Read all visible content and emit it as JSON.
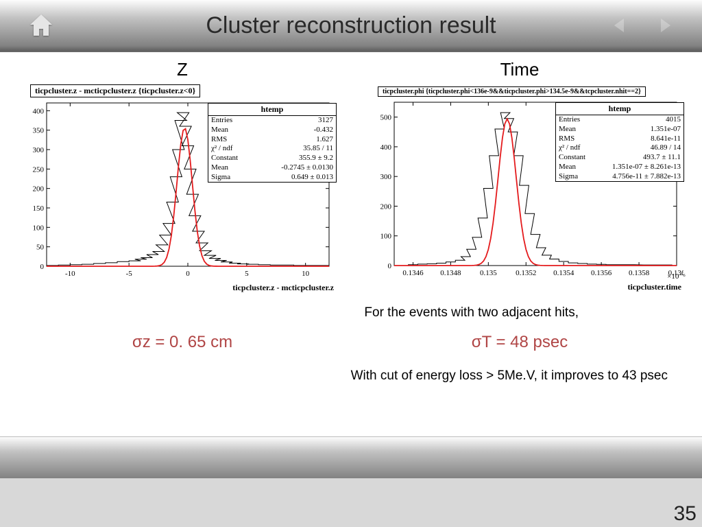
{
  "header": {
    "title": "Cluster reconstruction result"
  },
  "panel_labels": {
    "left": "Z",
    "right": "Time"
  },
  "chart_left": {
    "cut_title": "ticpcluster.z - mcticpcluster.z {ticpcluster.z<0}",
    "axis_title": "ticpcluster.z - mcticpcluster.z",
    "stats": {
      "title": "htemp",
      "rows": [
        [
          "Entries",
          "3127"
        ],
        [
          "Mean",
          "-0.432"
        ],
        [
          "RMS",
          "1.627"
        ],
        [
          "χ² / ndf",
          "35.85 / 11"
        ],
        [
          "Constant",
          "355.9 ± 9.2"
        ],
        [
          "Mean",
          "-0.2745 ± 0.0130"
        ],
        [
          "Sigma",
          "0.649 ± 0.013"
        ]
      ]
    },
    "style": {
      "xlim": [
        -12,
        12
      ],
      "ylim": [
        0,
        420
      ],
      "ytick_step": 50,
      "xticks": [
        -10,
        -5,
        0,
        5,
        10
      ],
      "fit_color": "#e41a1c",
      "hist_color": "#000000",
      "bg": "#ffffff",
      "line_width": 1.8
    },
    "gauss": {
      "mean": -0.2745,
      "sigma": 0.649,
      "amp": 356
    },
    "bins": [
      [
        -11.5,
        2
      ],
      [
        -10.5,
        3
      ],
      [
        -9.5,
        4
      ],
      [
        -8.5,
        5
      ],
      [
        -7.5,
        7
      ],
      [
        -6.5,
        9
      ],
      [
        -5.5,
        12
      ],
      [
        -4.5,
        14
      ],
      [
        -4.0,
        18
      ],
      [
        -3.5,
        22
      ],
      [
        -3.0,
        30
      ],
      [
        -2.5,
        38
      ],
      [
        -2.2,
        55
      ],
      [
        -1.9,
        80
      ],
      [
        -1.6,
        110
      ],
      [
        -1.3,
        165
      ],
      [
        -1.0,
        230
      ],
      [
        -0.8,
        300
      ],
      [
        -0.6,
        375
      ],
      [
        -0.4,
        395
      ],
      [
        -0.2,
        360
      ],
      [
        0.0,
        310
      ],
      [
        0.2,
        250
      ],
      [
        0.4,
        185
      ],
      [
        0.6,
        130
      ],
      [
        0.9,
        90
      ],
      [
        1.2,
        60
      ],
      [
        1.5,
        40
      ],
      [
        1.9,
        28
      ],
      [
        2.3,
        20
      ],
      [
        2.8,
        15
      ],
      [
        3.3,
        11
      ],
      [
        4.0,
        8
      ],
      [
        4.7,
        6
      ],
      [
        5.5,
        5
      ],
      [
        6.5,
        4
      ],
      [
        7.5,
        3
      ],
      [
        8.5,
        3
      ],
      [
        9.5,
        2
      ],
      [
        10.5,
        2
      ],
      [
        11.5,
        2
      ]
    ]
  },
  "chart_right": {
    "cut_title": "ticpcluster.phi {ticpcluster.phi<136e-9&&ticpcluster.phi>134.5e-9&&tcpcluster.nhit==2}",
    "axis_title": "ticpcluster.time",
    "exponent": "×10⁻⁶",
    "stats": {
      "title": "htemp",
      "rows": [
        [
          "Entries",
          "4015"
        ],
        [
          "Mean",
          "1.351e-07"
        ],
        [
          "RMS",
          "8.641e-11"
        ],
        [
          "χ² / ndf",
          "46.89 / 14"
        ],
        [
          "Constant",
          "493.7 ± 11.1"
        ],
        [
          "Mean",
          "1.351e-07 ± 8.261e-13"
        ],
        [
          "Sigma",
          "4.756e-11 ± 7.882e-13"
        ]
      ]
    },
    "style": {
      "xlim": [
        0.1345,
        0.136
      ],
      "ylim": [
        0,
        550
      ],
      "ytick_step": 100,
      "xticks": [
        0.1346,
        0.1348,
        0.135,
        0.1352,
        0.1354,
        0.1356,
        0.1358,
        0.136
      ],
      "fit_color": "#e41a1c",
      "hist_color": "#000000",
      "bg": "#ffffff",
      "line_width": 1.8
    },
    "gauss": {
      "mean": 0.1351,
      "sigma": 4.76e-05,
      "amp": 494
    },
    "bins": [
      [
        0.1346,
        3
      ],
      [
        0.13465,
        5
      ],
      [
        0.1347,
        6
      ],
      [
        0.13475,
        8
      ],
      [
        0.1348,
        12
      ],
      [
        0.13485,
        18
      ],
      [
        0.13488,
        30
      ],
      [
        0.13491,
        55
      ],
      [
        0.13494,
        95
      ],
      [
        0.13497,
        160
      ],
      [
        0.135,
        260
      ],
      [
        0.13503,
        370
      ],
      [
        0.13506,
        460
      ],
      [
        0.13509,
        515
      ],
      [
        0.13511,
        495
      ],
      [
        0.13513,
        450
      ],
      [
        0.13516,
        370
      ],
      [
        0.13519,
        270
      ],
      [
        0.13522,
        175
      ],
      [
        0.13525,
        105
      ],
      [
        0.13528,
        60
      ],
      [
        0.13531,
        35
      ],
      [
        0.13535,
        22
      ],
      [
        0.1354,
        14
      ],
      [
        0.13545,
        9
      ],
      [
        0.1355,
        7
      ],
      [
        0.13555,
        5
      ],
      [
        0.1356,
        4
      ],
      [
        0.13565,
        3
      ],
      [
        0.13575,
        3
      ],
      [
        0.13585,
        2
      ],
      [
        0.13595,
        2
      ]
    ]
  },
  "text": {
    "note1": "For the events with two adjacent hits,",
    "sigma_z": "σz  = 0. 65 cm",
    "sigma_t": "σT = 48 psec",
    "note2": "With cut of energy loss > 5Me.V, it improves to 43 psec"
  },
  "page_number": "35"
}
